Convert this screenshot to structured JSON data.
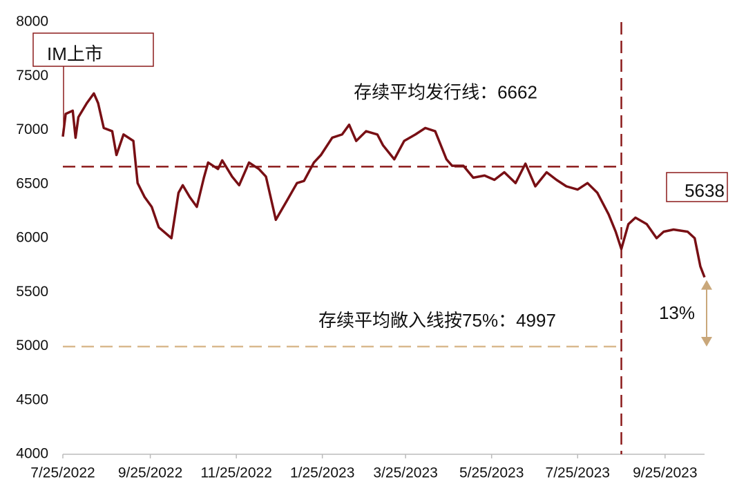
{
  "chart_data": {
    "type": "line",
    "x": [
      "7/25/2022",
      "7/27/2022",
      "8/1/2022",
      "8/3/2022",
      "8/5/2022",
      "8/11/2022",
      "8/16/2022",
      "8/19/2022",
      "8/23/2022",
      "8/29/2022",
      "9/1/2022",
      "9/6/2022",
      "9/13/2022",
      "9/16/2022",
      "9/21/2022",
      "9/26/2022",
      "10/1/2022",
      "10/10/2022",
      "10/15/2022",
      "10/18/2022",
      "10/23/2022",
      "10/28/2022",
      "11/2/2022",
      "11/5/2022",
      "11/12/2022",
      "11/15/2022",
      "11/22/2022",
      "11/27/2022",
      "12/4/2022",
      "12/11/2022",
      "12/16/2022",
      "12/23/2022",
      "12/31/2022",
      "1/7/2023",
      "1/12/2023",
      "1/19/2023",
      "1/24/2023",
      "2/1/2023",
      "2/8/2023",
      "2/13/2023",
      "2/18/2023",
      "2/25/2023",
      "3/5/2023",
      "3/9/2023",
      "3/17/2023",
      "3/24/2023",
      "4/1/2023",
      "4/8/2023",
      "4/15/2023",
      "4/23/2023",
      "4/27/2023",
      "5/5/2023",
      "5/12/2023",
      "5/20/2023",
      "5/27/2023",
      "6/3/2023",
      "6/11/2023",
      "6/18/2023",
      "6/25/2023",
      "7/3/2023",
      "7/10/2023",
      "7/17/2023",
      "7/25/2023",
      "8/1/2023",
      "8/8/2023",
      "8/16/2023",
      "8/21/2023",
      "8/25/2023",
      "8/30/2023",
      "9/4/2023",
      "9/12/2023",
      "9/19/2023",
      "9/24/2023",
      "10/1/2023",
      "10/11/2023",
      "10/16/2023",
      "10/20/2023",
      "10/23/2023"
    ],
    "series": [
      {
        "color": "#780f14",
        "values": [
          6940,
          7150,
          7180,
          6930,
          7120,
          7250,
          7340,
          7250,
          7020,
          6990,
          6770,
          6960,
          6900,
          6510,
          6380,
          6290,
          6100,
          6000,
          6420,
          6490,
          6380,
          6290,
          6560,
          6700,
          6640,
          6720,
          6570,
          6490,
          6700,
          6640,
          6570,
          6170,
          6350,
          6510,
          6530,
          6700,
          6770,
          6930,
          6960,
          7050,
          6900,
          6990,
          6960,
          6860,
          6730,
          6900,
          6960,
          7020,
          6990,
          6730,
          6670,
          6670,
          6560,
          6580,
          6540,
          6610,
          6510,
          6690,
          6480,
          6610,
          6540,
          6480,
          6450,
          6510,
          6420,
          6220,
          6060,
          5900,
          6130,
          6190,
          6130,
          6000,
          6060,
          6080,
          6060,
          6000,
          5740,
          5638
        ]
      }
    ],
    "xlim": [
      "7/25/2022",
      "10/23/2023"
    ],
    "xticks": [
      "7/25/2022",
      "9/25/2022",
      "11/25/2022",
      "1/25/2023",
      "3/25/2023",
      "5/25/2023",
      "7/25/2023",
      "9/25/2023"
    ],
    "ylim": [
      4000,
      8000
    ],
    "yticks": [
      4000,
      4500,
      5000,
      5500,
      6000,
      6500,
      7000,
      7500,
      8000
    ],
    "reference_lines": [
      {
        "label": "存续平均发行线：6662",
        "value": 6662,
        "color": "#8b1a1a"
      },
      {
        "label": "存续平均敞入线按75%：4997",
        "value": 4997,
        "color": "#d9b98e"
      }
    ],
    "vline": {
      "x": "8/25/2023",
      "color": "#8b1a1a"
    },
    "start_annotation": "IM上市",
    "change_annotation": {
      "text": "13%",
      "color": "#c9a77a"
    }
  }
}
